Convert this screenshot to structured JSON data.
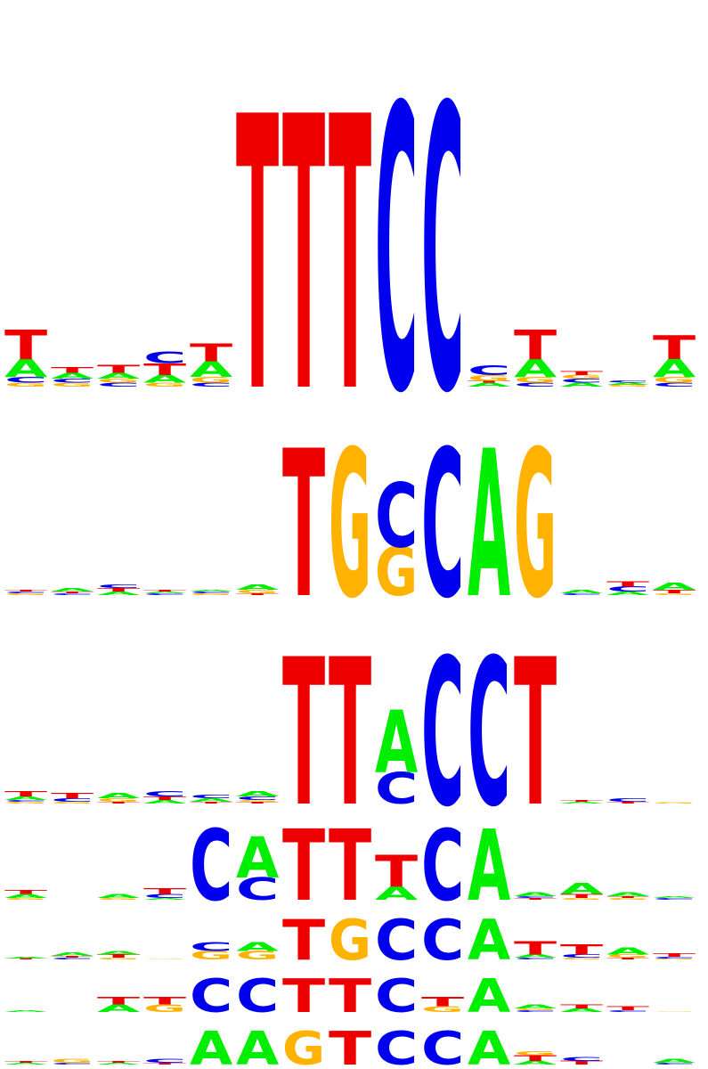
{
  "colors": {
    "A": "#00ee00",
    "C": "#0000ee",
    "G": "#ffb300",
    "T": "#ee0000"
  },
  "chart_data": [
    {
      "type": "sequence-logo",
      "columns": [
        [
          [
            "G",
            0.02
          ],
          [
            "C",
            0.03
          ],
          [
            "A",
            0.09
          ],
          [
            "T",
            0.15
          ]
        ],
        [
          [
            "G",
            0.02
          ],
          [
            "C",
            0.02
          ],
          [
            "A",
            0.03
          ],
          [
            "T",
            0.03
          ]
        ],
        [
          [
            "C",
            0.02
          ],
          [
            "G",
            0.02
          ],
          [
            "A",
            0.03
          ],
          [
            "T",
            0.04
          ]
        ],
        [
          [
            "G",
            0.02
          ],
          [
            "A",
            0.04
          ],
          [
            "T",
            0.06
          ],
          [
            "C",
            0.06
          ]
        ],
        [
          [
            "C",
            0.02
          ],
          [
            "G",
            0.03
          ],
          [
            "A",
            0.08
          ],
          [
            "T",
            0.09
          ]
        ],
        [
          [
            "T",
            1.4
          ]
        ],
        [
          [
            "T",
            1.4
          ]
        ],
        [
          [
            "T",
            1.4
          ]
        ],
        [
          [
            "C",
            1.45
          ]
        ],
        [
          [
            "C",
            1.45
          ]
        ],
        [
          [
            "A",
            0.02
          ],
          [
            "T",
            0.01
          ],
          [
            "G",
            0.03
          ],
          [
            "C",
            0.05
          ]
        ],
        [
          [
            "C",
            0.02
          ],
          [
            "G",
            0.03
          ],
          [
            "A",
            0.09
          ],
          [
            "T",
            0.15
          ]
        ],
        [
          [
            "A",
            0.02
          ],
          [
            "C",
            0.02
          ],
          [
            "G",
            0.02
          ],
          [
            "T",
            0.02
          ]
        ],
        [
          [
            "G",
            0.01
          ],
          [
            "A",
            0.01
          ],
          [
            "C",
            0.01
          ]
        ],
        [
          [
            "C",
            0.02
          ],
          [
            "G",
            0.03
          ],
          [
            "A",
            0.09
          ],
          [
            "T",
            0.12
          ]
        ]
      ]
    },
    {
      "type": "sequence-logo",
      "columns": [
        [
          [
            "G",
            0.01
          ],
          [
            "C",
            0.01
          ],
          [
            "T",
            0.01
          ]
        ],
        [
          [
            "C",
            0.01
          ],
          [
            "T",
            0.01
          ],
          [
            "A",
            0.02
          ]
        ],
        [
          [
            "A",
            0.02
          ],
          [
            "T",
            0.02
          ],
          [
            "C",
            0.02
          ]
        ],
        [
          [
            "C",
            0.01
          ],
          [
            "A",
            0.01
          ],
          [
            "T",
            0.01
          ]
        ],
        [
          [
            "G",
            0.01
          ],
          [
            "C",
            0.01
          ],
          [
            "A",
            0.01
          ]
        ],
        [
          [
            "T",
            0.01
          ],
          [
            "G",
            0.02
          ],
          [
            "A",
            0.03
          ]
        ],
        [
          [
            "T",
            0.85
          ]
        ],
        [
          [
            "G",
            0.85
          ]
        ],
        [
          [
            "G",
            0.28
          ],
          [
            "C",
            0.37
          ]
        ],
        [
          [
            "C",
            0.85
          ]
        ],
        [
          [
            "A",
            0.85
          ]
        ],
        [
          [
            "G",
            0.85
          ]
        ],
        [
          [
            "C",
            0.01
          ],
          [
            "A",
            0.02
          ]
        ],
        [
          [
            "A",
            0.02
          ],
          [
            "C",
            0.03
          ],
          [
            "T",
            0.03
          ]
        ],
        [
          [
            "G",
            0.01
          ],
          [
            "T",
            0.02
          ],
          [
            "A",
            0.04
          ]
        ]
      ]
    },
    {
      "type": "sequence-logo",
      "columns": [
        [
          [
            "G",
            0.01
          ],
          [
            "C",
            0.01
          ],
          [
            "A",
            0.02
          ],
          [
            "T",
            0.03
          ]
        ],
        [
          [
            "G",
            0.01
          ],
          [
            "C",
            0.02
          ],
          [
            "T",
            0.03
          ]
        ],
        [
          [
            "T",
            0.01
          ],
          [
            "G",
            0.02
          ],
          [
            "A",
            0.03
          ]
        ],
        [
          [
            "A",
            0.02
          ],
          [
            "T",
            0.02
          ],
          [
            "C",
            0.03
          ]
        ],
        [
          [
            "T",
            0.01
          ],
          [
            "A",
            0.02
          ],
          [
            "C",
            0.02
          ]
        ],
        [
          [
            "T",
            0.01
          ],
          [
            "G",
            0.01
          ],
          [
            "C",
            0.02
          ],
          [
            "A",
            0.03
          ]
        ],
        [
          [
            "T",
            0.85
          ]
        ],
        [
          [
            "T",
            0.85
          ]
        ],
        [
          [
            "C",
            0.18
          ],
          [
            "A",
            0.36
          ]
        ],
        [
          [
            "C",
            0.85
          ]
        ],
        [
          [
            "C",
            0.85
          ]
        ],
        [
          [
            "T",
            0.85
          ]
        ],
        [
          [
            "A",
            0.01
          ],
          [
            "T",
            0.01
          ]
        ],
        [
          [
            "T",
            0.01
          ],
          [
            "C",
            0.02
          ]
        ],
        [
          [
            "G",
            0.005
          ]
        ]
      ]
    },
    {
      "type": "sequence-logo",
      "columns": [
        [
          [
            "G",
            0.01
          ],
          [
            "A",
            0.02
          ],
          [
            "T",
            0.02
          ]
        ],
        [],
        [
          [
            "G",
            0.01
          ],
          [
            "A",
            0.02
          ]
        ],
        [
          [
            "A",
            0.01
          ],
          [
            "C",
            0.02
          ],
          [
            "T",
            0.03
          ]
        ],
        [
          [
            "C",
            0.38
          ]
        ],
        [
          [
            "C",
            0.12
          ],
          [
            "A",
            0.22
          ]
        ],
        [
          [
            "T",
            0.38
          ]
        ],
        [
          [
            "T",
            0.38
          ]
        ],
        [
          [
            "A",
            0.07
          ],
          [
            "T",
            0.17
          ]
        ],
        [
          [
            "C",
            0.38
          ]
        ],
        [
          [
            "A",
            0.38
          ]
        ],
        [
          [
            "T",
            0.01
          ],
          [
            "C",
            0.01
          ],
          [
            "A",
            0.02
          ]
        ],
        [
          [
            "G",
            0.01
          ],
          [
            "T",
            0.02
          ],
          [
            "A",
            0.06
          ]
        ],
        [
          [
            "G",
            0.01
          ],
          [
            "T",
            0.01
          ],
          [
            "A",
            0.02
          ]
        ],
        [
          [
            "C",
            0.01
          ],
          [
            "A",
            0.01
          ]
        ]
      ]
    },
    {
      "type": "sequence-logo",
      "columns": [
        [
          [
            "T",
            0.005
          ],
          [
            "A",
            0.01
          ]
        ],
        [
          [
            "C",
            0.01
          ],
          [
            "T",
            0.01
          ],
          [
            "A",
            0.02
          ]
        ],
        [
          [
            "G",
            0.01
          ],
          [
            "T",
            0.02
          ],
          [
            "A",
            0.02
          ]
        ],
        [
          [
            "G",
            0.004
          ]
        ],
        [
          [
            "G",
            0.05
          ],
          [
            "C",
            0.05
          ]
        ],
        [
          [
            "G",
            0.05
          ],
          [
            "A",
            0.05
          ]
        ],
        [
          [
            "T",
            0.24
          ]
        ],
        [
          [
            "G",
            0.24
          ]
        ],
        [
          [
            "C",
            0.24
          ]
        ],
        [
          [
            "C",
            0.24
          ]
        ],
        [
          [
            "A",
            0.24
          ]
        ],
        [
          [
            "C",
            0.01
          ],
          [
            "A",
            0.02
          ],
          [
            "T",
            0.08
          ]
        ],
        [
          [
            "G",
            0.01
          ],
          [
            "C",
            0.02
          ],
          [
            "T",
            0.06
          ]
        ],
        [
          [
            "T",
            0.01
          ],
          [
            "G",
            0.02
          ],
          [
            "A",
            0.04
          ]
        ],
        [
          [
            "G",
            0.005
          ],
          [
            "C",
            0.01
          ],
          [
            "T",
            0.02
          ]
        ]
      ]
    },
    {
      "type": "sequence-logo",
      "columns": [
        [
          [
            "A",
            0.01
          ]
        ],
        [],
        [
          [
            "A",
            0.04
          ],
          [
            "T",
            0.04
          ]
        ],
        [
          [
            "G",
            0.04
          ],
          [
            "T",
            0.04
          ]
        ],
        [
          [
            "C",
            0.18
          ]
        ],
        [
          [
            "C",
            0.18
          ]
        ],
        [
          [
            "T",
            0.18
          ]
        ],
        [
          [
            "T",
            0.18
          ]
        ],
        [
          [
            "C",
            0.18
          ]
        ],
        [
          [
            "G",
            0.03
          ],
          [
            "T",
            0.05
          ]
        ],
        [
          [
            "A",
            0.18
          ]
        ],
        [
          [
            "C",
            0.01
          ],
          [
            "G",
            0.01
          ],
          [
            "A",
            0.02
          ]
        ],
        [
          [
            "A",
            0.02
          ],
          [
            "T",
            0.02
          ]
        ],
        [
          [
            "C",
            0.01
          ],
          [
            "T",
            0.02
          ]
        ],
        [
          [
            "G",
            0.004
          ]
        ]
      ]
    },
    {
      "type": "sequence-logo",
      "columns": [
        [
          [
            "A",
            0.01
          ],
          [
            "T",
            0.01
          ]
        ],
        [
          [
            "C",
            0.01
          ],
          [
            "G",
            0.02
          ]
        ],
        [
          [
            "A",
            0.01
          ],
          [
            "T",
            0.01
          ]
        ],
        [
          [
            "T",
            0.01
          ],
          [
            "C",
            0.02
          ]
        ],
        [
          [
            "A",
            0.18
          ]
        ],
        [
          [
            "A",
            0.18
          ]
        ],
        [
          [
            "G",
            0.18
          ]
        ],
        [
          [
            "T",
            0.18
          ]
        ],
        [
          [
            "C",
            0.18
          ]
        ],
        [
          [
            "C",
            0.18
          ]
        ],
        [
          [
            "A",
            0.18
          ]
        ],
        [
          [
            "A",
            0.02
          ],
          [
            "T",
            0.03
          ],
          [
            "G",
            0.02
          ]
        ],
        [
          [
            "T",
            0.02
          ],
          [
            "C",
            0.02
          ]
        ],
        [],
        [
          [
            "C",
            0.01
          ],
          [
            "A",
            0.02
          ]
        ]
      ]
    }
  ]
}
